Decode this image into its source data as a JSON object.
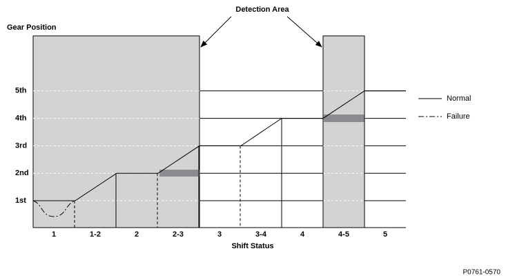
{
  "header": {
    "title": "Detection Area"
  },
  "y_axis": {
    "label": "Gear Position",
    "gears": [
      "1st",
      "2nd",
      "3rd",
      "4th",
      "5th"
    ]
  },
  "x_axis": {
    "label": "Shift Status",
    "statuses": [
      "1",
      "1-2",
      "2",
      "2-3",
      "3",
      "3-4",
      "4",
      "4-5",
      "5"
    ]
  },
  "legend": {
    "items": [
      "Normal",
      "Failure"
    ]
  },
  "footer": {
    "figure_id": "P0761-0570"
  }
}
